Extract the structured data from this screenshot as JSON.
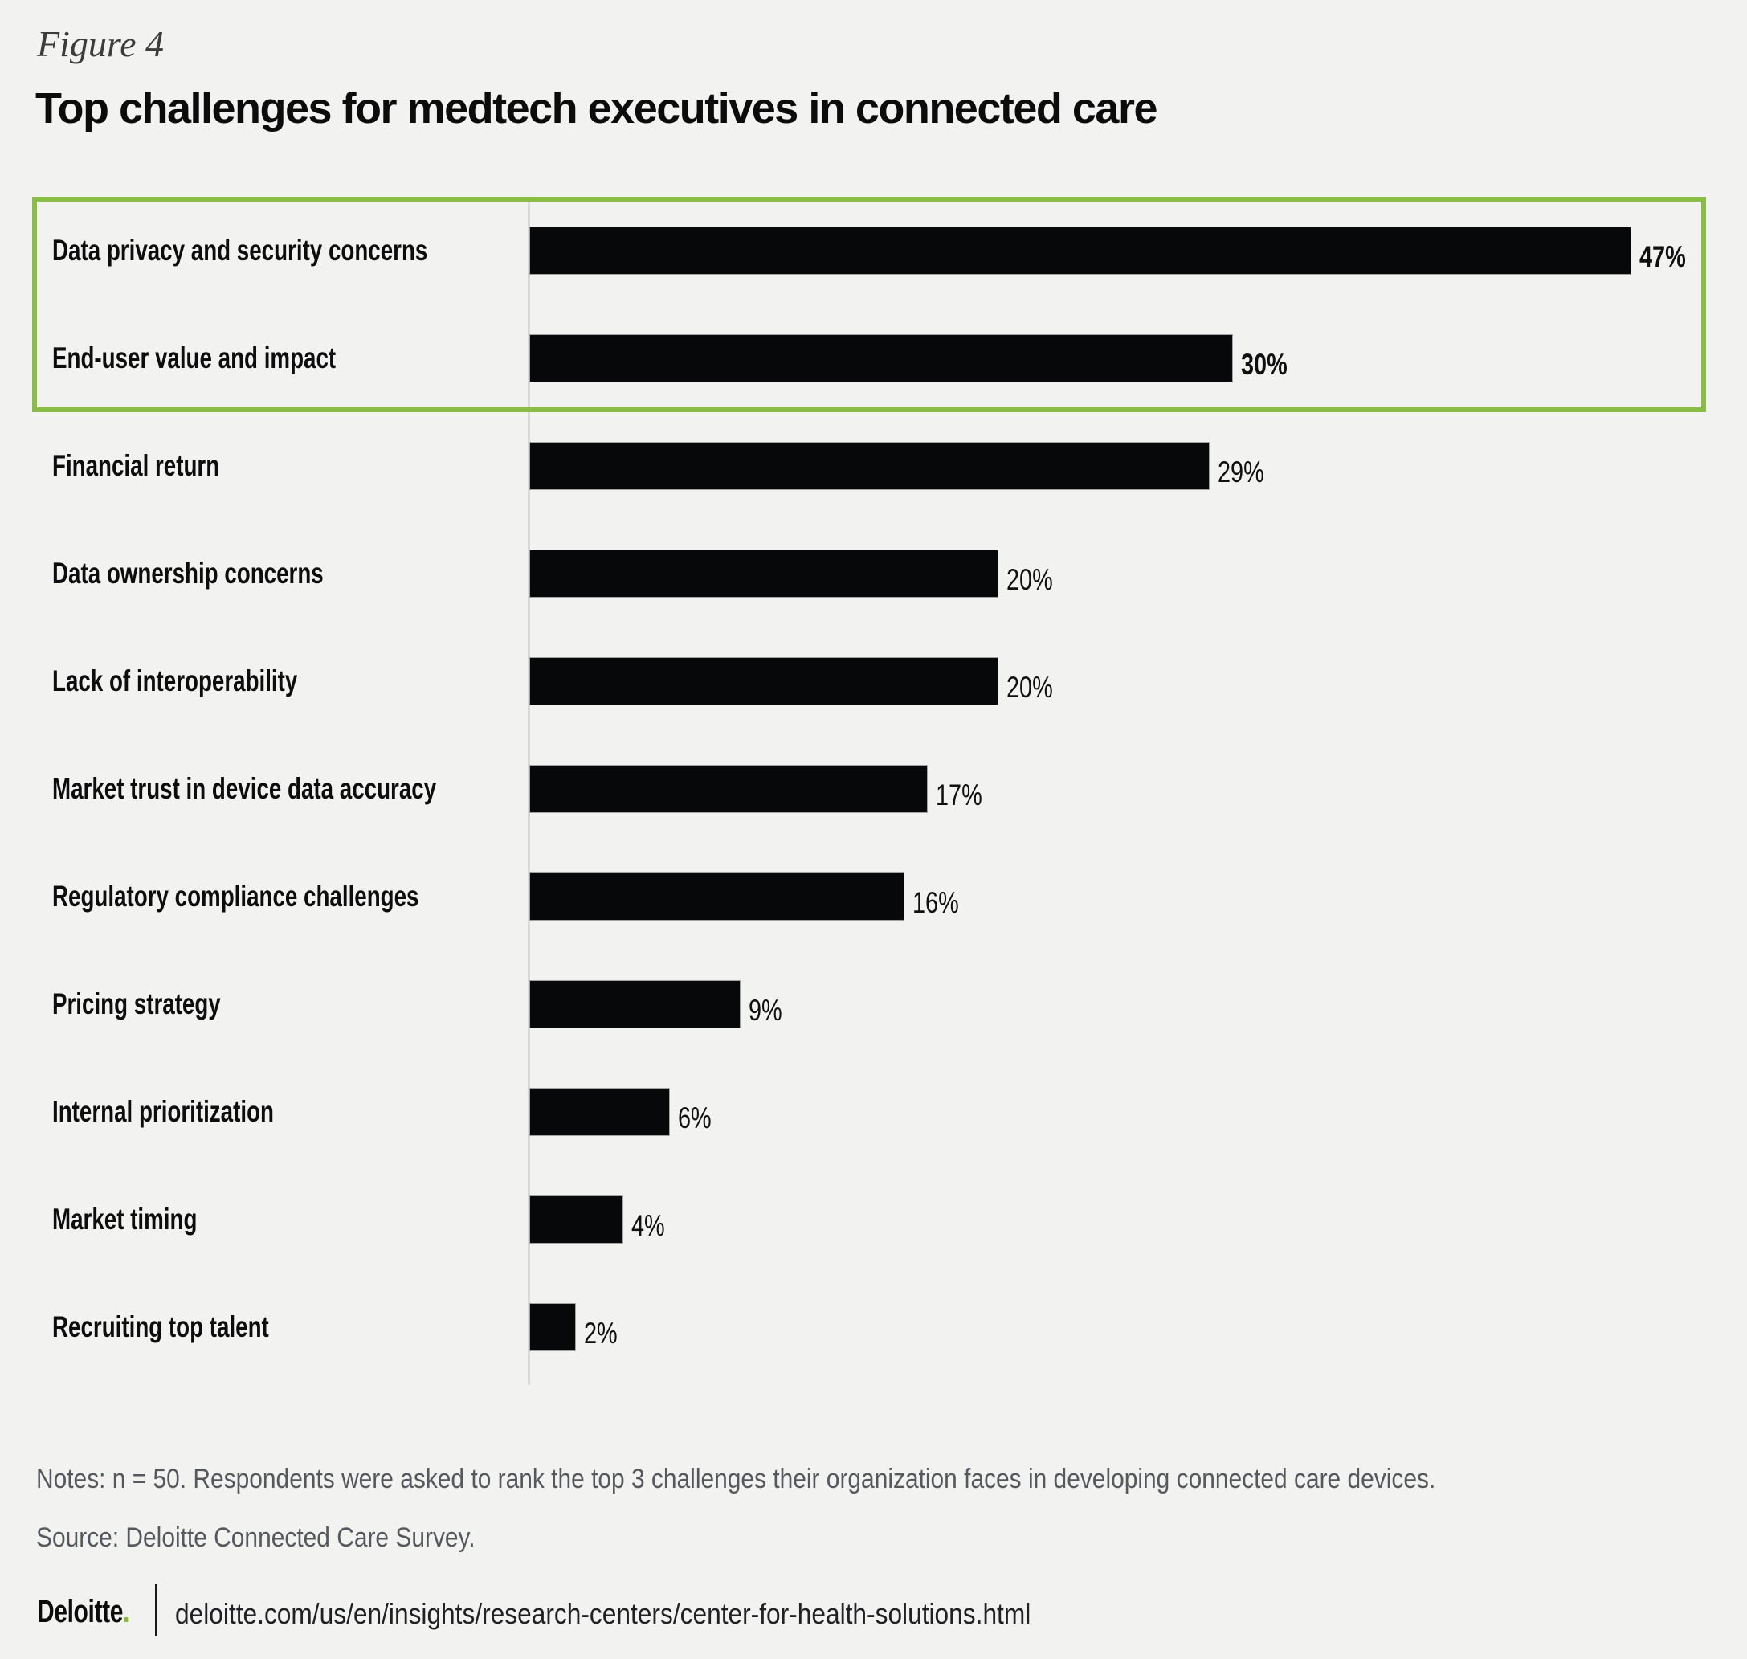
{
  "figure_label": "Figure 4",
  "title": "Top challenges for medtech executives in connected care",
  "chart_data": {
    "type": "bar",
    "orientation": "horizontal",
    "title": "Top challenges for medtech executives in connected care",
    "categories": [
      "Data privacy and security concerns",
      "End-user value and impact",
      "Financial return",
      "Data ownership concerns",
      "Lack of interoperability",
      "Market trust in device data accuracy",
      "Regulatory compliance challenges",
      "Pricing strategy",
      "Internal prioritization",
      "Market timing",
      "Recruiting top talent"
    ],
    "values": [
      47,
      30,
      29,
      20,
      20,
      17,
      16,
      9,
      6,
      4,
      2
    ],
    "unit": "%",
    "xlim": [
      0,
      50
    ],
    "grid": false,
    "legend": "none",
    "bar_color": "#060809",
    "highlighted_categories": [
      "Data privacy and security concerns",
      "End-user value and impact"
    ],
    "highlight_box_color": "#8ABD46",
    "annotation": "Top two challenges outlined with a green box"
  },
  "notes": "Notes: n = 50. Respondents were asked to rank the top 3 challenges their organization faces in developing connected care devices.",
  "source": "Source: Deloitte Connected Care Survey.",
  "footer": {
    "brand": "Deloitte",
    "brand_dot": ".",
    "brand_dot_color": "#86BC25",
    "url": "deloitte.com/us/en/insights/research-centers/center-for-health-solutions.html"
  }
}
